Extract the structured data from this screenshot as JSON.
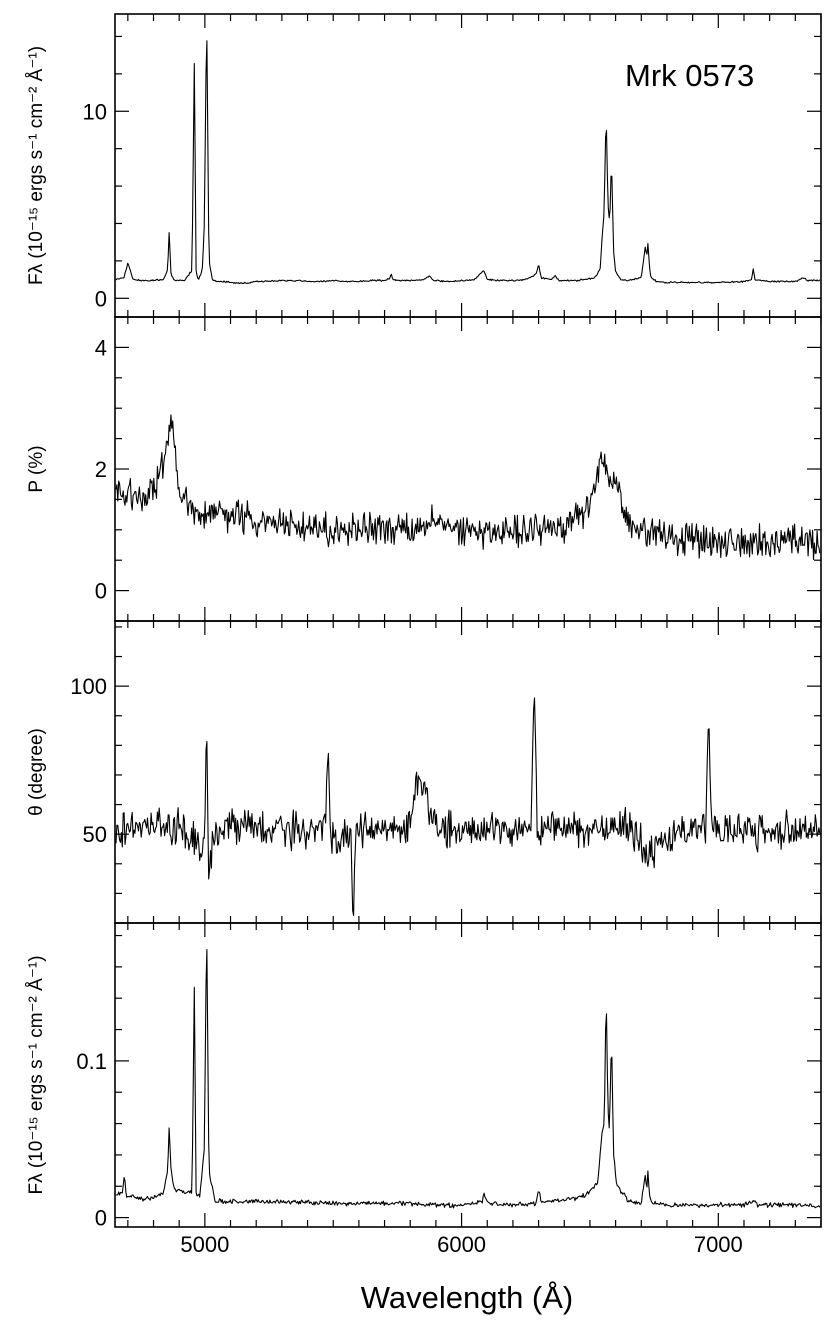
{
  "figure": {
    "object_label": "Mrk 0573",
    "x_label": "Wavelength  (Å)"
  },
  "chart_data": [
    {
      "type": "line",
      "ylabel": "Fλ (10⁻¹⁵ ergs s⁻¹ cm⁻² Å⁻¹)",
      "xlim": [
        4650,
        7400
      ],
      "ylim": [
        -1.0,
        15.2
      ],
      "yticks": [
        0,
        10
      ],
      "ytick_labels": [
        "0",
        "10"
      ],
      "x": [
        4650,
        4685,
        4700,
        4720,
        4750,
        4800,
        4840,
        4855,
        4861,
        4868,
        4880,
        4920,
        4950,
        4959,
        4966,
        4975,
        4990,
        4998,
        5007,
        5016,
        5030,
        5050,
        5100,
        5150,
        5200,
        5250,
        5300,
        5350,
        5400,
        5450,
        5500,
        5550,
        5600,
        5650,
        5700,
        5720,
        5726,
        5732,
        5750,
        5800,
        5850,
        5876,
        5890,
        5950,
        6000,
        6050,
        6087,
        6100,
        6150,
        6200,
        6250,
        6290,
        6300,
        6310,
        6350,
        6364,
        6380,
        6450,
        6520,
        6540,
        6548,
        6555,
        6563,
        6570,
        6577,
        6584,
        6592,
        6600,
        6620,
        6650,
        6700,
        6716,
        6721,
        6726,
        6731,
        6737,
        6760,
        6800,
        6900,
        7000,
        7100,
        7130,
        7136,
        7142,
        7200,
        7300,
        7330,
        7350,
        7400
      ],
      "y": [
        1.0,
        1.1,
        1.9,
        1.0,
        0.95,
        0.95,
        1.0,
        1.5,
        3.6,
        1.3,
        0.95,
        0.95,
        1.5,
        12.7,
        1.3,
        1.0,
        1.5,
        4.0,
        15.2,
        2.0,
        0.95,
        0.9,
        0.85,
        0.8,
        0.9,
        0.9,
        0.95,
        0.95,
        0.9,
        0.9,
        0.95,
        0.9,
        0.9,
        0.95,
        0.95,
        1.05,
        1.3,
        1.0,
        0.95,
        0.95,
        1.0,
        1.2,
        0.95,
        0.9,
        0.95,
        1.0,
        1.5,
        1.0,
        0.95,
        0.95,
        1.0,
        1.3,
        1.8,
        1.1,
        1.0,
        1.2,
        0.95,
        0.95,
        1.1,
        1.6,
        3.4,
        4.5,
        10.0,
        5.0,
        4.0,
        7.5,
        2.5,
        1.4,
        1.0,
        0.95,
        1.1,
        2.8,
        2.2,
        3.0,
        1.8,
        1.1,
        0.9,
        0.85,
        0.85,
        0.85,
        0.9,
        1.0,
        1.6,
        1.0,
        0.9,
        0.9,
        1.1,
        0.95,
        0.95
      ]
    },
    {
      "type": "line",
      "ylabel": "P  (%)",
      "xlim": [
        4650,
        7400
      ],
      "ylim": [
        -0.5,
        4.5
      ],
      "yticks": [
        0,
        2,
        4
      ],
      "ytick_labels": [
        "0",
        "2",
        "4"
      ],
      "x": [
        4650,
        4700,
        4750,
        4800,
        4840,
        4860,
        4880,
        4900,
        4950,
        5000,
        5050,
        5100,
        5150,
        5200,
        5300,
        5400,
        5450,
        5500,
        5600,
        5700,
        5800,
        5900,
        6000,
        6100,
        6200,
        6300,
        6400,
        6450,
        6500,
        6530,
        6550,
        6560,
        6580,
        6600,
        6620,
        6650,
        6700,
        6800,
        6900,
        7000,
        7100,
        7200,
        7300,
        7400
      ],
      "y": [
        1.8,
        1.6,
        1.5,
        1.55,
        2.2,
        2.75,
        2.5,
        1.6,
        1.35,
        1.3,
        1.3,
        1.25,
        1.2,
        1.15,
        1.1,
        1.05,
        1.0,
        1.0,
        1.0,
        1.0,
        1.0,
        1.15,
        0.95,
        0.95,
        1.0,
        1.0,
        1.05,
        1.15,
        1.4,
        1.9,
        2.15,
        2.0,
        1.8,
        1.9,
        1.5,
        1.15,
        1.0,
        0.9,
        0.85,
        0.8,
        0.8,
        0.8,
        0.8,
        0.75
      ]
    },
    {
      "type": "line",
      "ylabel": "θ  (degree)",
      "xlim": [
        4650,
        7400
      ],
      "ylim": [
        20,
        122
      ],
      "yticks": [
        50,
        100
      ],
      "ytick_labels": [
        "50",
        "100"
      ],
      "x": [
        4650,
        4700,
        4800,
        4900,
        4960,
        4990,
        5000,
        5007,
        5015,
        5030,
        5100,
        5200,
        5300,
        5400,
        5470,
        5480,
        5490,
        5550,
        5570,
        5577,
        5585,
        5600,
        5700,
        5800,
        5830,
        5900,
        6000,
        6100,
        6200,
        6270,
        6284,
        6295,
        6400,
        6500,
        6600,
        6650,
        6700,
        6720,
        6800,
        6900,
        6950,
        6963,
        6975,
        7050,
        7200,
        7300,
        7400
      ],
      "y": [
        52,
        52,
        53,
        52,
        50,
        43,
        50,
        88,
        30,
        50,
        53,
        52,
        52,
        51,
        52,
        79,
        50,
        50,
        48,
        20,
        50,
        51,
        52,
        52,
        71,
        51,
        51,
        51,
        52,
        52,
        100,
        52,
        52,
        52,
        53,
        52,
        48,
        40,
        50,
        51,
        51,
        91,
        50,
        51,
        51,
        51,
        51
      ]
    },
    {
      "type": "line",
      "ylabel": "Fλ (10⁻¹⁵ ergs s⁻¹ cm⁻² Å⁻¹)",
      "xlim": [
        4650,
        7400
      ],
      "ylim": [
        -0.006,
        0.188
      ],
      "yticks": [
        0,
        0.1
      ],
      "ytick_labels": [
        "0",
        "0.1"
      ],
      "x": [
        4650,
        4680,
        4686,
        4695,
        4750,
        4800,
        4840,
        4855,
        4861,
        4868,
        4880,
        4950,
        4959,
        4966,
        4980,
        4998,
        5007,
        5016,
        5040,
        5100,
        5200,
        5300,
        5400,
        5500,
        5600,
        5700,
        5800,
        5900,
        6000,
        6080,
        6087,
        6100,
        6200,
        6290,
        6300,
        6310,
        6400,
        6480,
        6530,
        6548,
        6556,
        6563,
        6570,
        6576,
        6584,
        6592,
        6605,
        6650,
        6700,
        6716,
        6721,
        6726,
        6731,
        6740,
        6800,
        6900,
        7000,
        7100,
        7136,
        7150,
        7300,
        7400
      ],
      "y": [
        0.014,
        0.016,
        0.026,
        0.014,
        0.012,
        0.013,
        0.016,
        0.03,
        0.058,
        0.03,
        0.018,
        0.016,
        0.148,
        0.015,
        0.014,
        0.045,
        0.188,
        0.03,
        0.011,
        0.01,
        0.01,
        0.01,
        0.01,
        0.009,
        0.009,
        0.009,
        0.009,
        0.008,
        0.008,
        0.01,
        0.015,
        0.009,
        0.008,
        0.009,
        0.018,
        0.01,
        0.011,
        0.014,
        0.022,
        0.055,
        0.06,
        0.147,
        0.07,
        0.055,
        0.118,
        0.04,
        0.02,
        0.011,
        0.009,
        0.028,
        0.015,
        0.03,
        0.014,
        0.009,
        0.008,
        0.008,
        0.008,
        0.008,
        0.011,
        0.008,
        0.008,
        0.007
      ]
    }
  ],
  "x_axis": {
    "ticks": [
      5000,
      6000,
      7000
    ],
    "tick_labels": [
      "5000",
      "6000",
      "7000"
    ]
  }
}
